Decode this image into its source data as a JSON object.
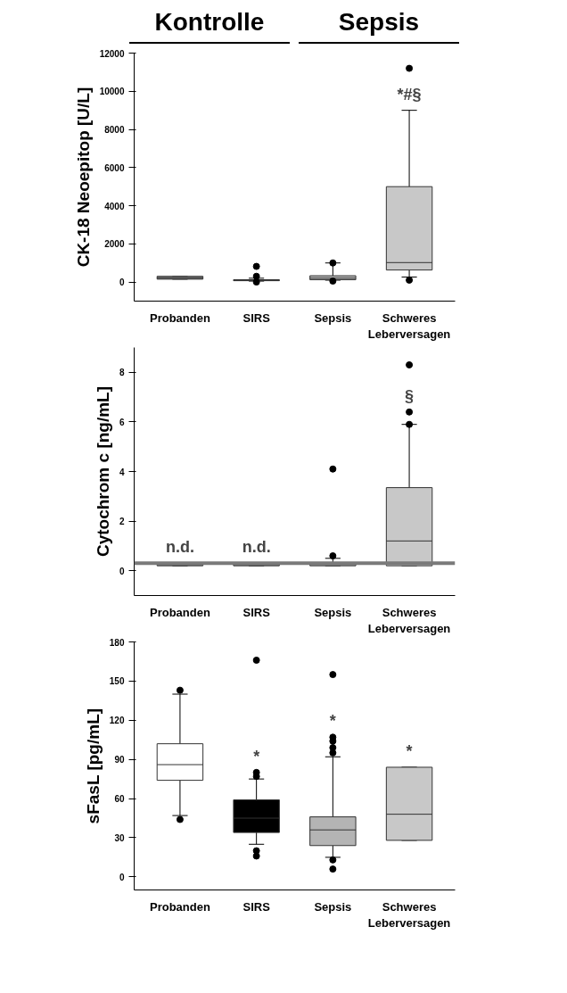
{
  "chart_data": [
    {
      "type": "box",
      "ylabel": "CK-18 Neoepitop [U/L]",
      "categories": [
        "Probanden",
        "SIRS",
        "Sepsis",
        "Schweres Leberversagen"
      ],
      "colors": [
        "#8c8c8c",
        "#000000",
        "#b4b4b4",
        "#c8c8c8"
      ],
      "boxes": [
        {
          "low": 150,
          "q1": 150,
          "median": 220,
          "q3": 300,
          "high": 300
        },
        {
          "low": 50,
          "q1": 70,
          "median": 90,
          "q3": 120,
          "high": 200,
          "outliers": [
            820,
            300,
            0
          ]
        },
        {
          "low": 100,
          "q1": 120,
          "median": 200,
          "q3": 330,
          "high": 1000,
          "outliers": [
            1000,
            50
          ]
        },
        {
          "low": 260,
          "q1": 630,
          "median": 1020,
          "q3": 5000,
          "high": 9000,
          "outliers": [
            11200,
            100
          ]
        }
      ],
      "ylim": [
        -1000,
        12000
      ],
      "yticks": [
        0,
        2000,
        4000,
        6000,
        8000,
        10000,
        12000
      ],
      "value_labels": [
        null,
        null,
        null,
        "*#§"
      ],
      "annotations": [
        "Kontrolle",
        "Sepsis"
      ]
    },
    {
      "type": "box",
      "ylabel": "Cytochrom c [ng/mL]",
      "categories": [
        "Probanden",
        "SIRS",
        "Sepsis",
        "Schweres Leberversagen"
      ],
      "colors": [
        "#8c8c8c",
        "#8c8c8c",
        "#b4b4b4",
        "#c8c8c8"
      ],
      "boxes": [
        {
          "low": 0.2,
          "q1": 0.2,
          "median": 0.25,
          "q3": 0.3,
          "high": 0.3
        },
        {
          "low": 0.2,
          "q1": 0.2,
          "median": 0.25,
          "q3": 0.3,
          "high": 0.3
        },
        {
          "low": 0.2,
          "q1": 0.2,
          "median": 0.25,
          "q3": 0.3,
          "high": 0.5,
          "outliers": [
            0.6,
            4.1
          ]
        },
        {
          "low": 0.2,
          "q1": 0.2,
          "median": 1.2,
          "q3": 3.35,
          "high": 5.9,
          "outliers": [
            5.9,
            6.4,
            8.3
          ]
        }
      ],
      "ylim": [
        -1,
        9
      ],
      "yticks": [
        0,
        2,
        4,
        6,
        8
      ],
      "ref_lines": [
        {
          "axis": "y",
          "value": 0.3,
          "color": "#7a7a7a"
        }
      ],
      "value_labels": [
        "n.d.",
        "n.d.",
        null,
        "§"
      ]
    },
    {
      "type": "box",
      "ylabel": "sFasL [pg/mL]",
      "categories": [
        "Probanden",
        "SIRS",
        "Sepsis",
        "Schweres Leberversagen"
      ],
      "colors": [
        "#ffffff",
        "#000000",
        "#b4b4b4",
        "#c8c8c8"
      ],
      "boxes": [
        {
          "low": 47,
          "q1": 74,
          "median": 86,
          "q3": 102,
          "high": 140,
          "outliers": [
            143,
            44
          ]
        },
        {
          "low": 25,
          "q1": 34,
          "median": 45,
          "q3": 59,
          "high": 75,
          "outliers": [
            166,
            80,
            77,
            20,
            16
          ]
        },
        {
          "low": 15,
          "q1": 24,
          "median": 36,
          "q3": 46,
          "high": 92,
          "outliers": [
            155,
            107,
            104,
            99,
            95,
            13,
            6
          ]
        },
        {
          "low": 28,
          "q1": 28,
          "median": 48,
          "q3": 84,
          "high": 84
        }
      ],
      "ylim": [
        -10,
        180
      ],
      "yticks": [
        0,
        30,
        60,
        90,
        120,
        150,
        180
      ],
      "value_labels": [
        null,
        "*",
        "*",
        "*"
      ]
    }
  ]
}
